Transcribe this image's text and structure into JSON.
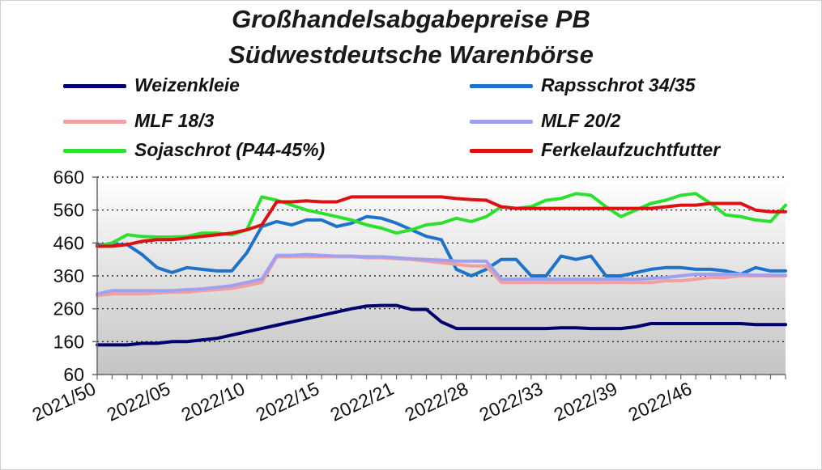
{
  "chart_data": {
    "type": "line",
    "title": "Großhandelsabgabepreise PB",
    "subtitle": "Südwestdeutsche Warenbörse",
    "xlabel": "",
    "ylabel": "",
    "ylim": [
      60,
      660
    ],
    "yticks": [
      "660",
      "560",
      "460",
      "360",
      "260",
      "160",
      "60"
    ],
    "grid": "horizontal dotted",
    "background": "gradient",
    "legend_position": "top",
    "x_tick_labels": [
      "2021/50",
      "2022/05",
      "2022/10",
      "2022/15",
      "2022/21",
      "2022/28",
      "2022/33",
      "2022/39",
      "2022/46"
    ],
    "series": [
      {
        "name": "Weizenkleie",
        "color": "#00006e",
        "values": [
          150,
          150,
          150,
          155,
          155,
          160,
          160,
          165,
          170,
          180,
          190,
          200,
          210,
          220,
          230,
          240,
          250,
          260,
          268,
          270,
          270,
          258,
          258,
          220,
          200,
          200,
          200,
          200,
          200,
          200,
          200,
          202,
          202,
          200,
          200,
          200,
          205,
          215,
          215,
          215,
          215,
          215,
          215,
          215,
          212,
          212,
          212
        ]
      },
      {
        "name": "Rapsschrot 34/35",
        "color": "#1e73c8",
        "values": [
          455,
          455,
          455,
          425,
          385,
          370,
          385,
          380,
          375,
          375,
          430,
          510,
          525,
          515,
          530,
          530,
          510,
          520,
          540,
          535,
          520,
          500,
          480,
          470,
          380,
          360,
          380,
          410,
          410,
          360,
          360,
          420,
          410,
          420,
          360,
          360,
          370,
          380,
          385,
          385,
          380,
          380,
          375,
          365,
          385,
          375,
          375
        ]
      },
      {
        "name": "MLF 18/3",
        "color": "#f0a0a0",
        "values": [
          300,
          305,
          305,
          305,
          308,
          310,
          310,
          315,
          318,
          322,
          330,
          340,
          418,
          418,
          418,
          418,
          418,
          418,
          415,
          415,
          412,
          410,
          405,
          400,
          395,
          390,
          390,
          340,
          340,
          340,
          340,
          340,
          340,
          340,
          340,
          340,
          340,
          340,
          345,
          345,
          350,
          355,
          355,
          360,
          360,
          360,
          360
        ]
      },
      {
        "name": "MLF 20/2",
        "color": "#a0a0f0",
        "values": [
          305,
          315,
          315,
          315,
          315,
          315,
          318,
          320,
          325,
          330,
          340,
          350,
          422,
          422,
          425,
          422,
          420,
          420,
          418,
          418,
          415,
          412,
          410,
          408,
          405,
          405,
          405,
          350,
          350,
          350,
          350,
          350,
          350,
          350,
          350,
          350,
          350,
          352,
          355,
          360,
          365,
          365,
          365,
          365,
          362,
          362,
          362
        ]
      },
      {
        "name": "Sojaschrot (P44-45%)",
        "color": "#2ee02e",
        "values": [
          450,
          460,
          485,
          480,
          478,
          478,
          480,
          490,
          490,
          485,
          500,
          600,
          590,
          575,
          560,
          550,
          540,
          530,
          515,
          505,
          490,
          500,
          515,
          520,
          535,
          525,
          540,
          570,
          565,
          570,
          590,
          595,
          610,
          605,
          570,
          540,
          560,
          580,
          590,
          605,
          610,
          580,
          545,
          540,
          530,
          525,
          575
        ]
      },
      {
        "name": "Ferkelaufzuchtfutter",
        "color": "#dd1111",
        "values": [
          450,
          450,
          455,
          465,
          470,
          470,
          475,
          480,
          485,
          490,
          500,
          515,
          585,
          585,
          588,
          585,
          585,
          600,
          600,
          600,
          600,
          600,
          600,
          600,
          595,
          592,
          590,
          570,
          565,
          565,
          565,
          565,
          565,
          565,
          565,
          565,
          565,
          565,
          570,
          575,
          575,
          580,
          580,
          580,
          560,
          555,
          555
        ]
      }
    ]
  }
}
